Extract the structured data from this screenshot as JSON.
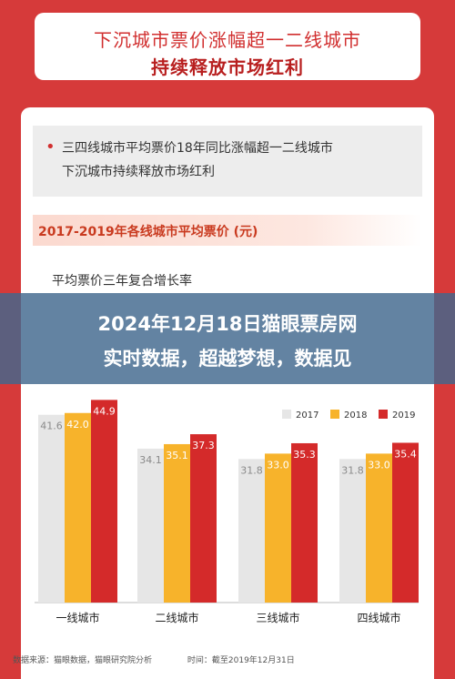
{
  "header": {
    "line1": "下沉城市票价涨幅超一二线城市",
    "line2": "持续释放市场红利"
  },
  "note": {
    "bullet": "•",
    "line1": "三四线城市平均票价18年同比涨幅超一二线城市",
    "line2": "下沉城市持续释放市场红利"
  },
  "banner": {
    "line1": "2024年12月18日猫眼票房网",
    "line2": "实时数据，超越梦想，数据见"
  },
  "footer": {
    "source": "数据来源：猫眼数据，猫眼研究院分析",
    "time": "时间：截至2019年12月31日"
  },
  "chart_data": {
    "type": "bar",
    "title": "2017-2019年各线城市平均票价 (元)",
    "subtitle": "平均票价三年复合增长率",
    "categories": [
      "一线城市",
      "二线城市",
      "三线城市",
      "四线城市"
    ],
    "series": [
      {
        "name": "2017",
        "color": "#e6e6e6",
        "values": [
          41.6,
          34.1,
          31.8,
          31.8
        ]
      },
      {
        "name": "2018",
        "color": "#f7b32b",
        "values": [
          42.0,
          35.1,
          33.0,
          33.0
        ]
      },
      {
        "name": "2019",
        "color": "#d42a2a",
        "values": [
          44.9,
          37.3,
          35.3,
          35.4
        ]
      }
    ],
    "ylim": [
      0,
      48
    ],
    "legend": "top-right",
    "grid": false
  }
}
